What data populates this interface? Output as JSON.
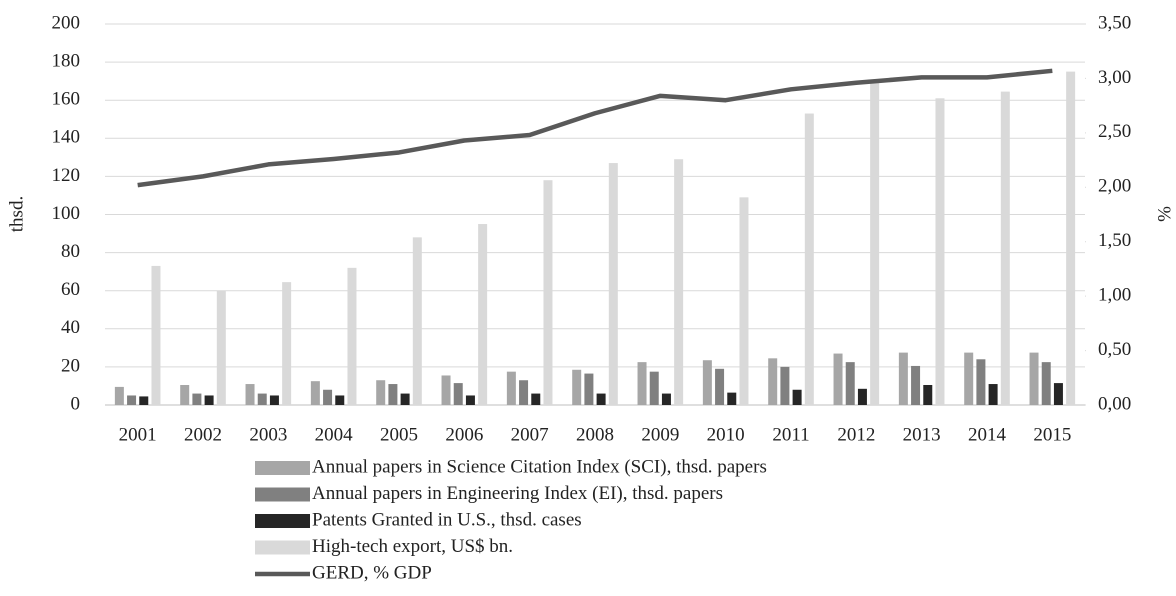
{
  "chart_data": {
    "type": "bar_line",
    "y_label": "thsd.",
    "y2_label": "%",
    "categories": [
      "2001",
      "2002",
      "2003",
      "2004",
      "2005",
      "2006",
      "2007",
      "2008",
      "2009",
      "2010",
      "2011",
      "2012",
      "2013",
      "2014",
      "2015"
    ],
    "series": [
      {
        "name": "Annual papers in Science Citation Index (SCI), thsd. papers",
        "color": "#a6a6a6",
        "type": "bar",
        "values": [
          9.5,
          10.5,
          11,
          12.5,
          13,
          15.5,
          17.5,
          18.5,
          22.5,
          23.5,
          24.5,
          27,
          27.5,
          27.5,
          27.5
        ]
      },
      {
        "name": "Annual papers in Engineering Index (EI), thsd. papers",
        "color": "#808080",
        "type": "bar",
        "values": [
          5,
          6,
          6,
          8,
          11,
          11.5,
          13,
          16.5,
          17.5,
          19,
          20,
          22.5,
          20.5,
          24,
          22.5
        ]
      },
      {
        "name": "Patents Granted in U.S., thsd. cases",
        "color": "#262626",
        "type": "bar",
        "values": [
          4.5,
          5,
          5,
          5,
          6,
          5,
          6,
          6,
          6,
          6.5,
          8,
          8.5,
          10.5,
          11,
          11.5
        ]
      },
      {
        "name": "High-tech export, US$ bn.",
        "color": "#d9d9d9",
        "type": "bar",
        "values": [
          73,
          60,
          64.5,
          72,
          88,
          95,
          118,
          127,
          129,
          109,
          153,
          170,
          161,
          164.5,
          175
        ]
      },
      {
        "name": "GERD, % GDP",
        "color": "#595959",
        "type": "line",
        "axis": "y2",
        "values": [
          2.02,
          2.1,
          2.21,
          2.26,
          2.32,
          2.43,
          2.48,
          2.68,
          2.84,
          2.8,
          2.9,
          2.96,
          3.01,
          3.01,
          3.07
        ]
      }
    ],
    "ylim": [
      0,
      200
    ],
    "yticks": [
      0,
      20,
      40,
      60,
      80,
      100,
      120,
      140,
      160,
      180,
      200
    ],
    "y2lim": [
      0,
      3.5
    ],
    "y2ticks": [
      {
        "value": 0,
        "label": "0,00"
      },
      {
        "value": 0.5,
        "label": "0,50"
      },
      {
        "value": 1,
        "label": "1,00"
      },
      {
        "value": 1.5,
        "label": "1,50"
      },
      {
        "value": 2,
        "label": "2,00"
      },
      {
        "value": 2.5,
        "label": "2,50"
      },
      {
        "value": 3,
        "label": "3,00"
      },
      {
        "value": 3.5,
        "label": "3,50"
      }
    ],
    "grid": true,
    "legend": "bottom"
  }
}
